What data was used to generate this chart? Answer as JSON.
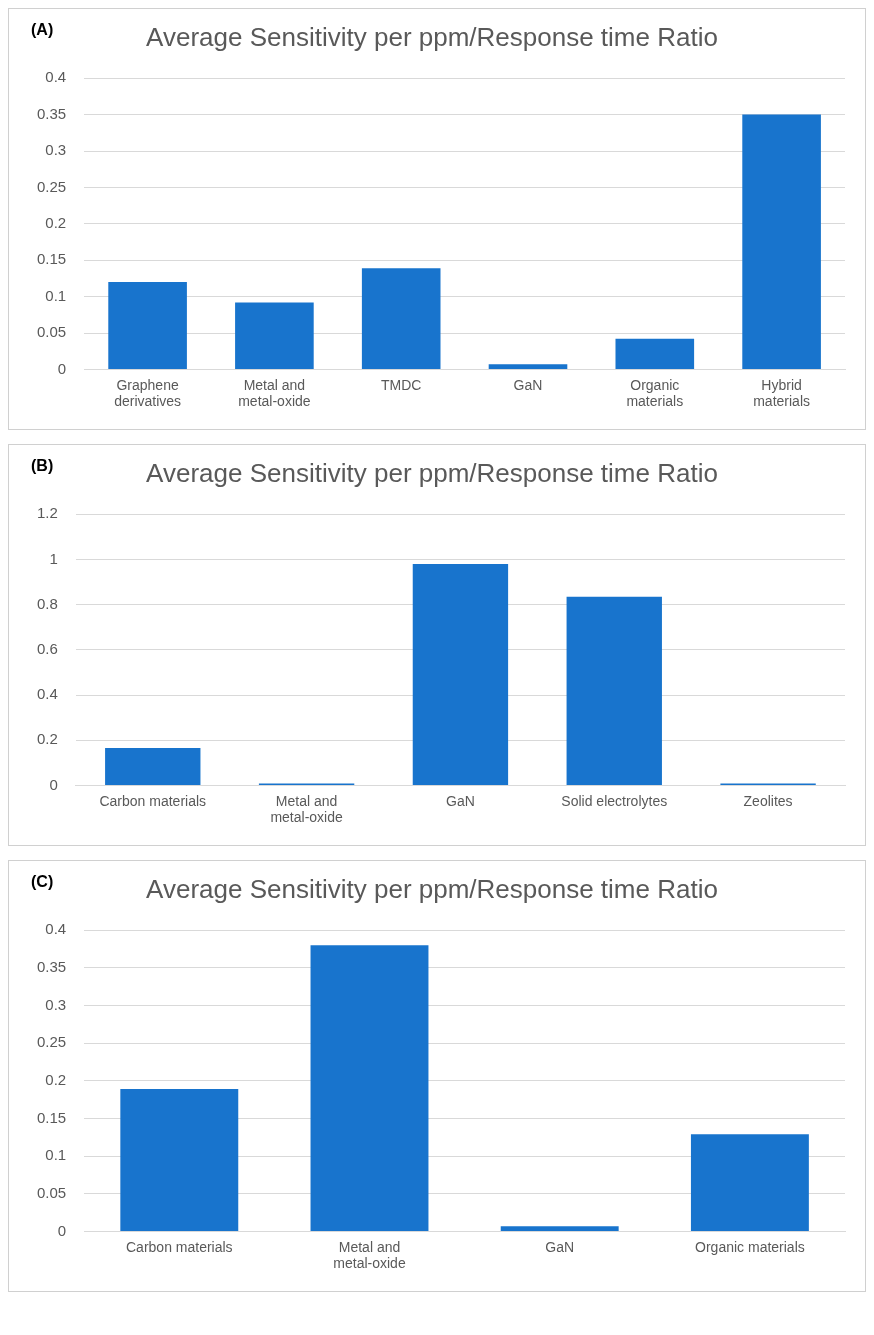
{
  "chart_data": [
    {
      "type": "bar",
      "title": "Average Sensitivity per ppm/Response time Ratio",
      "annotations": [
        "(A)"
      ],
      "categories": [
        "Graphene derivatives",
        "Metal and metal-oxide",
        "TMDC",
        "GaN",
        "Organic materials",
        "Hybrid materials"
      ],
      "values": [
        0.12,
        0.092,
        0.139,
        0.007,
        0.042,
        0.35
      ],
      "color": "#1874cd",
      "ylim": [
        0,
        0.4
      ],
      "yticks": [
        0,
        0.05,
        0.1,
        0.15,
        0.2,
        0.25,
        0.3,
        0.35,
        0.4
      ],
      "grid": "y",
      "legend": false
    },
    {
      "type": "bar",
      "title": "Average Sensitivity per ppm/Response time Ratio",
      "annotations": [
        "(B)"
      ],
      "categories": [
        "Carbon materials",
        "Metal and metal-oxide",
        "GaN",
        "Solid electrolytes",
        "Zeolites"
      ],
      "values": [
        0.165,
        0.008,
        0.98,
        0.835,
        0.008
      ],
      "color": "#1874cd",
      "ylim": [
        0,
        1.2
      ],
      "yticks": [
        0,
        0.2,
        0.4,
        0.6,
        0.8,
        1,
        1.2
      ],
      "grid": "y",
      "legend": false
    },
    {
      "type": "bar",
      "title": "Average Sensitivity per ppm/Response time Ratio",
      "annotations": [
        "(C)"
      ],
      "categories": [
        "Carbon materials",
        "Metal and metal-oxide",
        "GaN",
        "Organic materials"
      ],
      "values": [
        0.189,
        0.38,
        0.007,
        0.129
      ],
      "color": "#1874cd",
      "ylim": [
        0,
        0.4
      ],
      "yticks": [
        0,
        0.05,
        0.1,
        0.15,
        0.2,
        0.25,
        0.3,
        0.35,
        0.4
      ],
      "grid": "y",
      "legend": false
    }
  ]
}
